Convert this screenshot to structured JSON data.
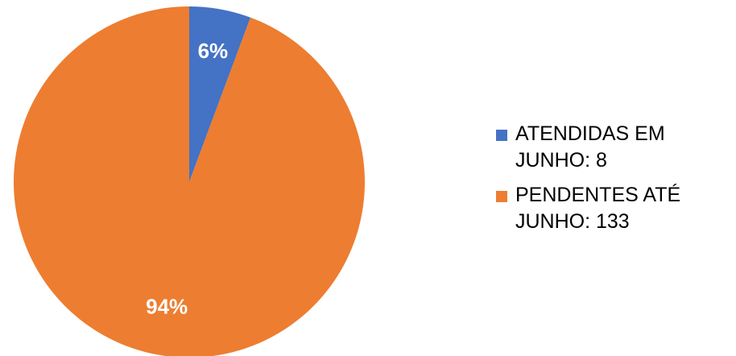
{
  "chart_data": {
    "type": "pie",
    "title": "",
    "slices": [
      {
        "name": "ATENDIDAS EM JUNHO: 8",
        "value": 8,
        "percent_label": "6%",
        "color": "#4472C4"
      },
      {
        "name": "PENDENTES ATÉ JUNHO: 133",
        "value": 133,
        "percent_label": "94%",
        "color": "#ED7D31"
      }
    ],
    "legend_position": "right"
  }
}
